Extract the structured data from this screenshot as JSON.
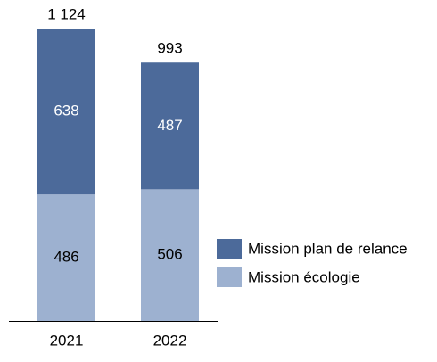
{
  "chart_data": {
    "type": "stacked_bar",
    "categories": [
      "2021",
      "2022"
    ],
    "series": [
      {
        "name": "Mission écologie",
        "color": "#9db1d0",
        "values": [
          486,
          506
        ]
      },
      {
        "name": "Mission plan de relance",
        "color": "#4c6a9a",
        "values": [
          638,
          487
        ]
      }
    ],
    "totals": [
      1124,
      993
    ],
    "total_labels": [
      "1 124",
      "993"
    ]
  }
}
